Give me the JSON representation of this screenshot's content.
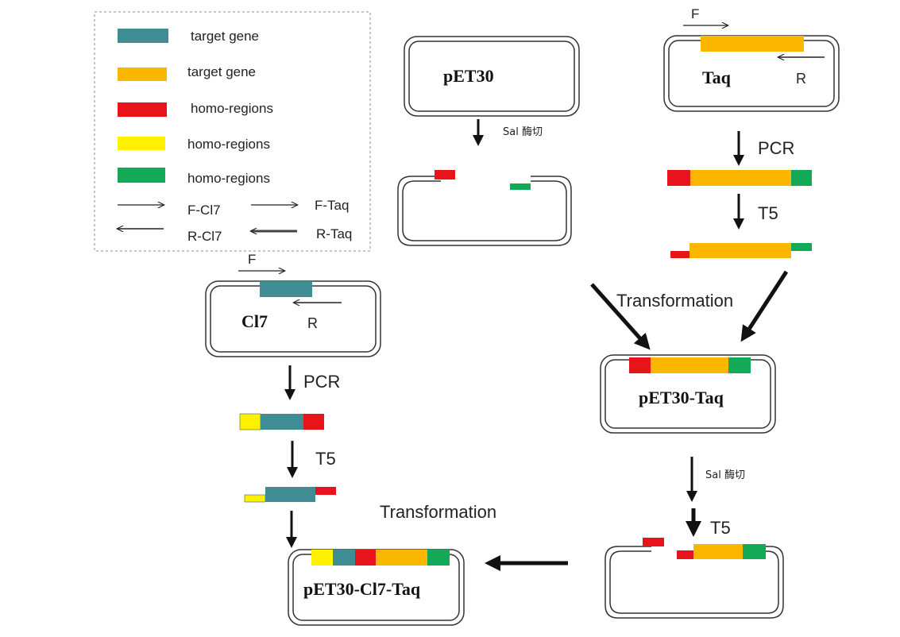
{
  "colors": {
    "teal": "#3f8c94",
    "orange": "#fbb600",
    "red": "#e8141b",
    "yellow": "#fff200",
    "green": "#14a957",
    "ink": "#222222"
  },
  "legend": {
    "items": [
      {
        "label": "target gene",
        "color": "teal"
      },
      {
        "label": "target gene",
        "color": "orange"
      },
      {
        "label": "homo-regions",
        "color": "red"
      },
      {
        "label": "homo-regions",
        "color": "yellow"
      },
      {
        "label": "homo-regions",
        "color": "green"
      }
    ],
    "primers": {
      "f_cl7": "F-Cl7",
      "f_taq": "F-Taq",
      "r_cl7": "R-Cl7",
      "r_taq": "R-Taq"
    }
  },
  "plasmids": {
    "pet30": "pET30",
    "taq": "Taq",
    "cl7": "Cl7",
    "pet30_taq": "pET30-Taq",
    "pet30_cl7_taq": "pET30-Cl7-Taq"
  },
  "primer_marks": {
    "forward": "F",
    "reverse": "R"
  },
  "steps": {
    "sal_digest": "Sal 酶切",
    "pcr": "PCR",
    "t5": "T5",
    "transformation": "Transformation"
  }
}
